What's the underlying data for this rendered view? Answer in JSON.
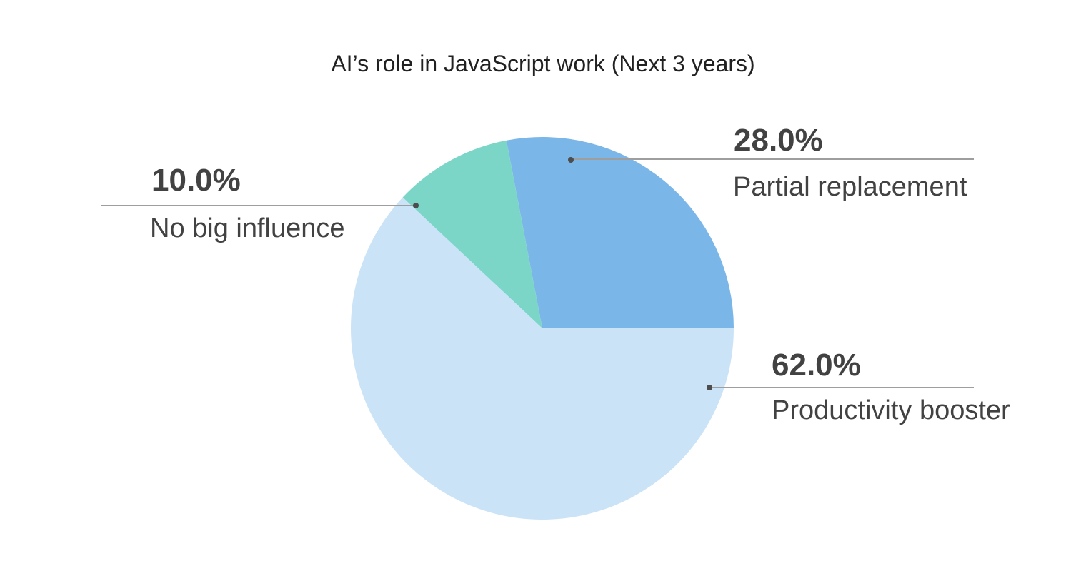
{
  "chart_data": {
    "type": "pie",
    "title": "AI’s role in JavaScript work (Next 3 years)",
    "slices": [
      {
        "label": "Partial replacement",
        "value": 28.0,
        "percent_label": "28.0%",
        "color": "#7ab6e8"
      },
      {
        "label": "No big influence",
        "value": 10.0,
        "percent_label": "10.0%",
        "color": "#7bd6c8"
      },
      {
        "label": "Productivity booster",
        "value": 62.0,
        "percent_label": "62.0%",
        "color": "#cbe3f7"
      }
    ],
    "layout": {
      "start_angle_deg": 0,
      "direction": "counterclockwise",
      "legend": "none",
      "labels": "external-horizontal-callouts",
      "grid": false,
      "title_color": "#212121",
      "percent_color": "#424242",
      "label_color": "#424242",
      "line_color": "#9e9e9e",
      "dot_color": "#4d4d4d",
      "background": "#ffffff"
    }
  }
}
